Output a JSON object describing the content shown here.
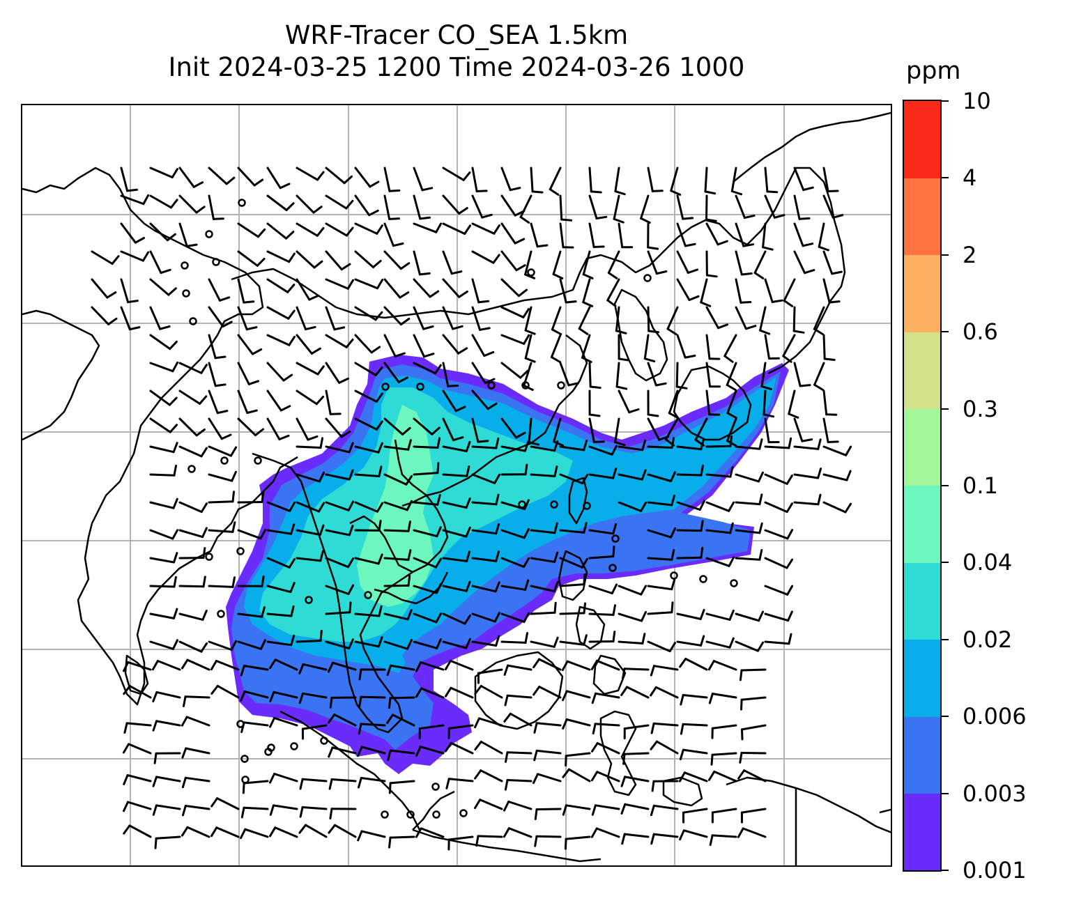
{
  "title": {
    "line1": "WRF-Tracer CO_SEA 1.5km",
    "line2": "Init 2024-03-25 1200 Time 2024-03-26 1000"
  },
  "colorbar": {
    "unit": "ppm",
    "tick_labels": [
      "0.001",
      "0.003",
      "0.006",
      "0.02",
      "0.04",
      "0.1",
      "0.3",
      "0.6",
      "2",
      "4",
      "10"
    ],
    "colors": [
      "#6a2cfa",
      "#3b74f2",
      "#07aeea",
      "#2fdcd5",
      "#6cf7bf",
      "#a4f69b",
      "#d2e187",
      "#fdb060",
      "#fe7340",
      "#fe2a19"
    ]
  },
  "map": {
    "colors": {
      "gridline": "#b3b3b3",
      "coastline": "#000000",
      "barbs": "#000000",
      "plume_level_1": "#6a2cfa",
      "plume_level_2": "#3b74f2",
      "plume_level_3": "#07aeea",
      "plume_level_4": "#2fdcd5",
      "plume_level_5": "#6cf7bf"
    },
    "gridlines": true,
    "wind_barbs": true,
    "calm_circles": true
  }
}
